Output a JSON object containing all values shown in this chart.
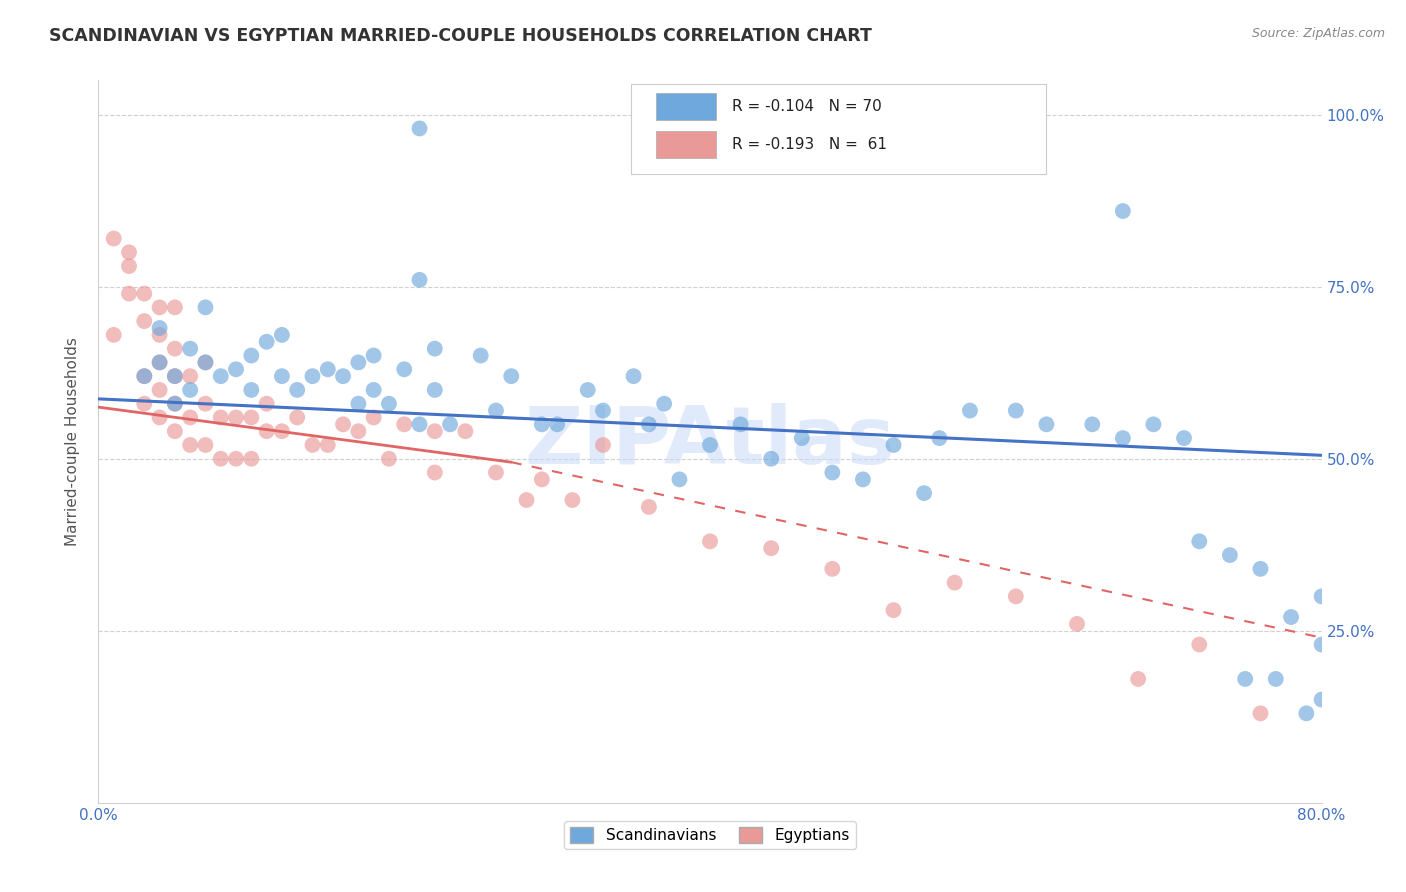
{
  "title": "SCANDINAVIAN VS EGYPTIAN MARRIED-COUPLE HOUSEHOLDS CORRELATION CHART",
  "source": "Source: ZipAtlas.com",
  "ylabel": "Married-couple Households",
  "legend_scandinavians": "Scandinavians",
  "legend_egyptians": "Egyptians",
  "r_scandinavians": "-0.104",
  "n_scandinavians": "70",
  "r_egyptians": "-0.193",
  "n_egyptians": "61",
  "blue_color": "#6fa8dc",
  "pink_color": "#ea9999",
  "trendline_blue": "#4472c4",
  "trendline_pink": "#e06666",
  "trendline_pink_dash": "#e06666",
  "watermark": "ZIPAtlas",
  "scan_x": [
    0.21,
    0.21,
    0.03,
    0.04,
    0.04,
    0.05,
    0.05,
    0.06,
    0.06,
    0.07,
    0.07,
    0.08,
    0.09,
    0.1,
    0.1,
    0.11,
    0.12,
    0.12,
    0.13,
    0.14,
    0.15,
    0.16,
    0.17,
    0.17,
    0.18,
    0.18,
    0.19,
    0.2,
    0.21,
    0.22,
    0.22,
    0.23,
    0.25,
    0.26,
    0.27,
    0.29,
    0.3,
    0.32,
    0.33,
    0.35,
    0.36,
    0.37,
    0.38,
    0.4,
    0.42,
    0.44,
    0.46,
    0.48,
    0.5,
    0.52,
    0.54,
    0.55,
    0.57,
    0.6,
    0.62,
    0.65,
    0.67,
    0.67,
    0.69,
    0.71,
    0.72,
    0.74,
    0.75,
    0.76,
    0.77,
    0.78,
    0.79,
    0.8,
    0.8,
    0.8
  ],
  "scan_y": [
    0.98,
    0.76,
    0.62,
    0.64,
    0.69,
    0.58,
    0.62,
    0.6,
    0.66,
    0.64,
    0.72,
    0.62,
    0.63,
    0.6,
    0.65,
    0.67,
    0.62,
    0.68,
    0.6,
    0.62,
    0.63,
    0.62,
    0.58,
    0.64,
    0.6,
    0.65,
    0.58,
    0.63,
    0.55,
    0.6,
    0.66,
    0.55,
    0.65,
    0.57,
    0.62,
    0.55,
    0.55,
    0.6,
    0.57,
    0.62,
    0.55,
    0.58,
    0.47,
    0.52,
    0.55,
    0.5,
    0.53,
    0.48,
    0.47,
    0.52,
    0.45,
    0.53,
    0.57,
    0.57,
    0.55,
    0.55,
    0.86,
    0.53,
    0.55,
    0.53,
    0.38,
    0.36,
    0.18,
    0.34,
    0.18,
    0.27,
    0.13,
    0.3,
    0.23,
    0.15
  ],
  "egy_x": [
    0.01,
    0.01,
    0.02,
    0.02,
    0.02,
    0.03,
    0.03,
    0.03,
    0.03,
    0.04,
    0.04,
    0.04,
    0.04,
    0.04,
    0.05,
    0.05,
    0.05,
    0.05,
    0.05,
    0.06,
    0.06,
    0.06,
    0.07,
    0.07,
    0.07,
    0.08,
    0.08,
    0.09,
    0.09,
    0.1,
    0.1,
    0.11,
    0.11,
    0.12,
    0.13,
    0.14,
    0.15,
    0.16,
    0.17,
    0.18,
    0.19,
    0.2,
    0.22,
    0.22,
    0.24,
    0.26,
    0.28,
    0.29,
    0.31,
    0.33,
    0.36,
    0.4,
    0.44,
    0.48,
    0.52,
    0.56,
    0.6,
    0.64,
    0.68,
    0.72,
    0.76
  ],
  "egy_y": [
    0.82,
    0.68,
    0.74,
    0.78,
    0.8,
    0.58,
    0.62,
    0.7,
    0.74,
    0.56,
    0.6,
    0.64,
    0.68,
    0.72,
    0.54,
    0.58,
    0.62,
    0.66,
    0.72,
    0.52,
    0.56,
    0.62,
    0.52,
    0.58,
    0.64,
    0.5,
    0.56,
    0.5,
    0.56,
    0.5,
    0.56,
    0.54,
    0.58,
    0.54,
    0.56,
    0.52,
    0.52,
    0.55,
    0.54,
    0.56,
    0.5,
    0.55,
    0.48,
    0.54,
    0.54,
    0.48,
    0.44,
    0.47,
    0.44,
    0.52,
    0.43,
    0.38,
    0.37,
    0.34,
    0.28,
    0.32,
    0.3,
    0.26,
    0.18,
    0.23,
    0.13
  ],
  "xmin": 0.0,
  "xmax": 0.8,
  "ymin": 0.0,
  "ymax": 1.05,
  "blue_trend_x0": 0.0,
  "blue_trend_y0": 0.587,
  "blue_trend_x1": 0.8,
  "blue_trend_y1": 0.505,
  "pink_trend_solid_x0": 0.0,
  "pink_trend_solid_y0": 0.575,
  "pink_trend_solid_x1": 0.27,
  "pink_trend_solid_y1": 0.495,
  "pink_trend_dash_x0": 0.27,
  "pink_trend_dash_y0": 0.495,
  "pink_trend_dash_x1": 0.8,
  "pink_trend_dash_y1": 0.24,
  "background_color": "#ffffff",
  "grid_color": "#d0d0d0",
  "title_color": "#333333",
  "axis_label_color": "#4472c4"
}
